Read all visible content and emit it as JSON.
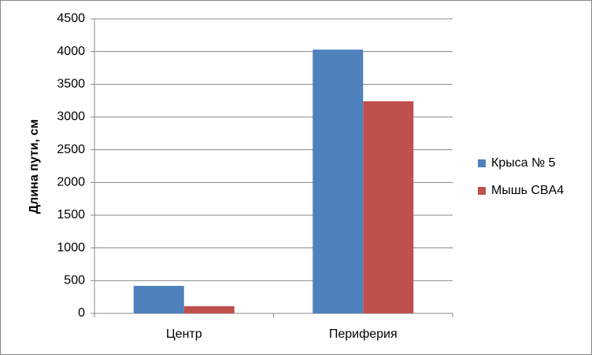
{
  "chart_data": {
    "type": "bar",
    "y_label": "Длина пути, см",
    "categories": [
      "Центр",
      "Периферия"
    ],
    "series": [
      {
        "name": "Крыса № 5",
        "color": "#4f81bd",
        "values": [
          420,
          4030
        ]
      },
      {
        "name": "Мышь CBA4",
        "color": "#c0504d",
        "values": [
          110,
          3240
        ]
      }
    ],
    "ylim": [
      0,
      4500
    ],
    "yticks": [
      0,
      500,
      1000,
      1500,
      2000,
      2500,
      3000,
      3500,
      4000,
      4500
    ],
    "grid": true,
    "legend": "right"
  }
}
